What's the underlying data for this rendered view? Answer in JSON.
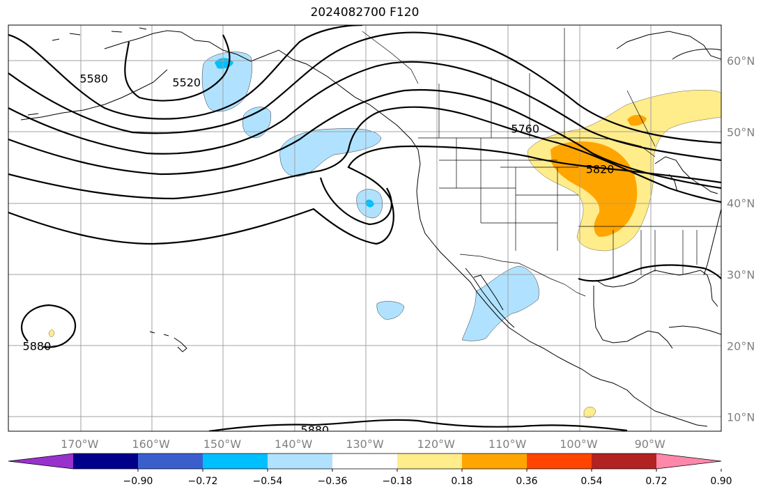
{
  "title": "2024082700 F120",
  "map": {
    "projection": "plate carree",
    "lon_range": [
      -180,
      -80
    ],
    "lat_range": [
      8,
      65
    ],
    "lon_ticks": [
      {
        "value": -170,
        "label": "170°W"
      },
      {
        "value": -160,
        "label": "160°W"
      },
      {
        "value": -150,
        "label": "150°W"
      },
      {
        "value": -140,
        "label": "140°W"
      },
      {
        "value": -130,
        "label": "130°W"
      },
      {
        "value": -120,
        "label": "120°W"
      },
      {
        "value": -110,
        "label": "110°W"
      },
      {
        "value": -100,
        "label": "100°W"
      },
      {
        "value": -90,
        "label": "90°W"
      }
    ],
    "lat_ticks": [
      {
        "value": 60,
        "label": "60°N"
      },
      {
        "value": 50,
        "label": "50°N"
      },
      {
        "value": 40,
        "label": "40°N"
      },
      {
        "value": 30,
        "label": "30°N"
      },
      {
        "value": 20,
        "label": "20°N"
      },
      {
        "value": 10,
        "label": "10°N"
      }
    ],
    "grid": true,
    "contour_labels": [
      {
        "text": "5580",
        "lon": -168,
        "lat": 57.5
      },
      {
        "text": "5520",
        "lon": -155,
        "lat": 57.0
      },
      {
        "text": "5760",
        "lon": -107.5,
        "lat": 50.5
      },
      {
        "text": "5820",
        "lon": -97,
        "lat": 44.8
      },
      {
        "text": "5880",
        "lon": -176,
        "lat": 20.0
      },
      {
        "text": "5880",
        "lon": -137,
        "lat": 8.2
      }
    ]
  },
  "colorbar": {
    "ticks": [
      "−0.90",
      "−0.72",
      "−0.54",
      "−0.36",
      "−0.18",
      "0.18",
      "0.36",
      "0.54",
      "0.72",
      "0.90"
    ],
    "colors": [
      "#9932cc",
      "#00008b",
      "#3a5fcd",
      "#00bfff",
      "#b0e2ff",
      "#ffffff",
      "#ffec8b",
      "#ffa500",
      "#ff4500",
      "#b22222",
      "#ff88aa"
    ]
  },
  "colors": {
    "light_blue": "#b0e2ff",
    "medium_blue": "#00bfff",
    "light_yellow": "#ffec8b",
    "orange": "#ffa500",
    "gridline": "#a0a0a0"
  }
}
